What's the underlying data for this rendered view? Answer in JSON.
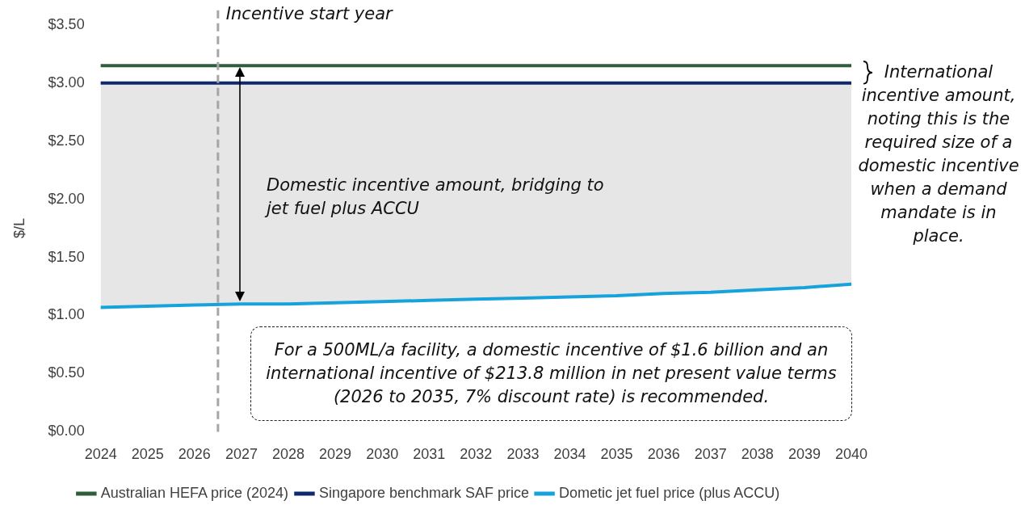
{
  "chart_data": {
    "type": "line",
    "ylabel": "$/L",
    "x": [
      2024,
      2025,
      2026,
      2027,
      2028,
      2029,
      2030,
      2031,
      2032,
      2033,
      2034,
      2035,
      2036,
      2037,
      2038,
      2039,
      2040
    ],
    "xlim": [
      2024,
      2040
    ],
    "xticks": [
      2024,
      2025,
      2026,
      2027,
      2028,
      2029,
      2030,
      2031,
      2032,
      2033,
      2034,
      2035,
      2036,
      2037,
      2038,
      2039,
      2040
    ],
    "ylim": [
      0,
      3.5
    ],
    "yticks": [
      {
        "value": 0,
        "label": "$0.00"
      },
      {
        "value": 0.5,
        "label": "$0.50"
      },
      {
        "value": 1,
        "label": "$1.00"
      },
      {
        "value": 1.5,
        "label": "$1.50"
      },
      {
        "value": 2,
        "label": "$2.00"
      },
      {
        "value": 2.5,
        "label": "$2.50"
      },
      {
        "value": 3,
        "label": "$3.00"
      },
      {
        "value": 3.5,
        "label": "$3.50"
      }
    ],
    "series": [
      {
        "name": "Australian HEFA price (2024)",
        "color": "#2e5e3a",
        "values": [
          3.15,
          3.15,
          3.15,
          3.15,
          3.15,
          3.15,
          3.15,
          3.15,
          3.15,
          3.15,
          3.15,
          3.15,
          3.15,
          3.15,
          3.15,
          3.15,
          3.15
        ]
      },
      {
        "name": "Singapore benchmark SAF price",
        "color": "#0e2a6b",
        "values": [
          3,
          3,
          3,
          3,
          3,
          3,
          3,
          3,
          3,
          3,
          3,
          3,
          3,
          3,
          3,
          3,
          3
        ],
        "lower": [
          1.07,
          1.08,
          1.09,
          1.1,
          1.1,
          1.11,
          1.12,
          1.13,
          1.14,
          1.15,
          1.16,
          1.17,
          1.19,
          1.2,
          1.22,
          1.24,
          1.27
        ],
        "upper": [
          3,
          3,
          3,
          3,
          3,
          3,
          3,
          3,
          3,
          3,
          3,
          3,
          3,
          3,
          3,
          3,
          3
        ]
      },
      {
        "name": "Dometic jet fuel price (plus ACCU)",
        "color": "#16a3dc",
        "values": [
          1.07,
          1.08,
          1.09,
          1.1,
          1.1,
          1.11,
          1.12,
          1.13,
          1.14,
          1.15,
          1.16,
          1.17,
          1.19,
          1.2,
          1.22,
          1.24,
          1.27
        ]
      }
    ],
    "ref_lines": [
      {
        "axis": "x",
        "value": 2026.5,
        "label": "Incentive start year",
        "color": "#a6a6a6",
        "line_style": "dashed"
      }
    ],
    "annotations": [
      "Domestic incentive amount, bridging to jet fuel plus ACCU",
      "International incentive amount, noting this is the required size of a domestic incentive when a demand mandate is in place.",
      "For a 500ML/a facility, a domestic incentive of $1.6 billion and an international incentive of $213.8 million in net present value terms (2026 to 2035, 7% discount rate) is recommended."
    ],
    "grid": false,
    "legend": "bottom",
    "marker": "none",
    "line_style": "solid"
  }
}
